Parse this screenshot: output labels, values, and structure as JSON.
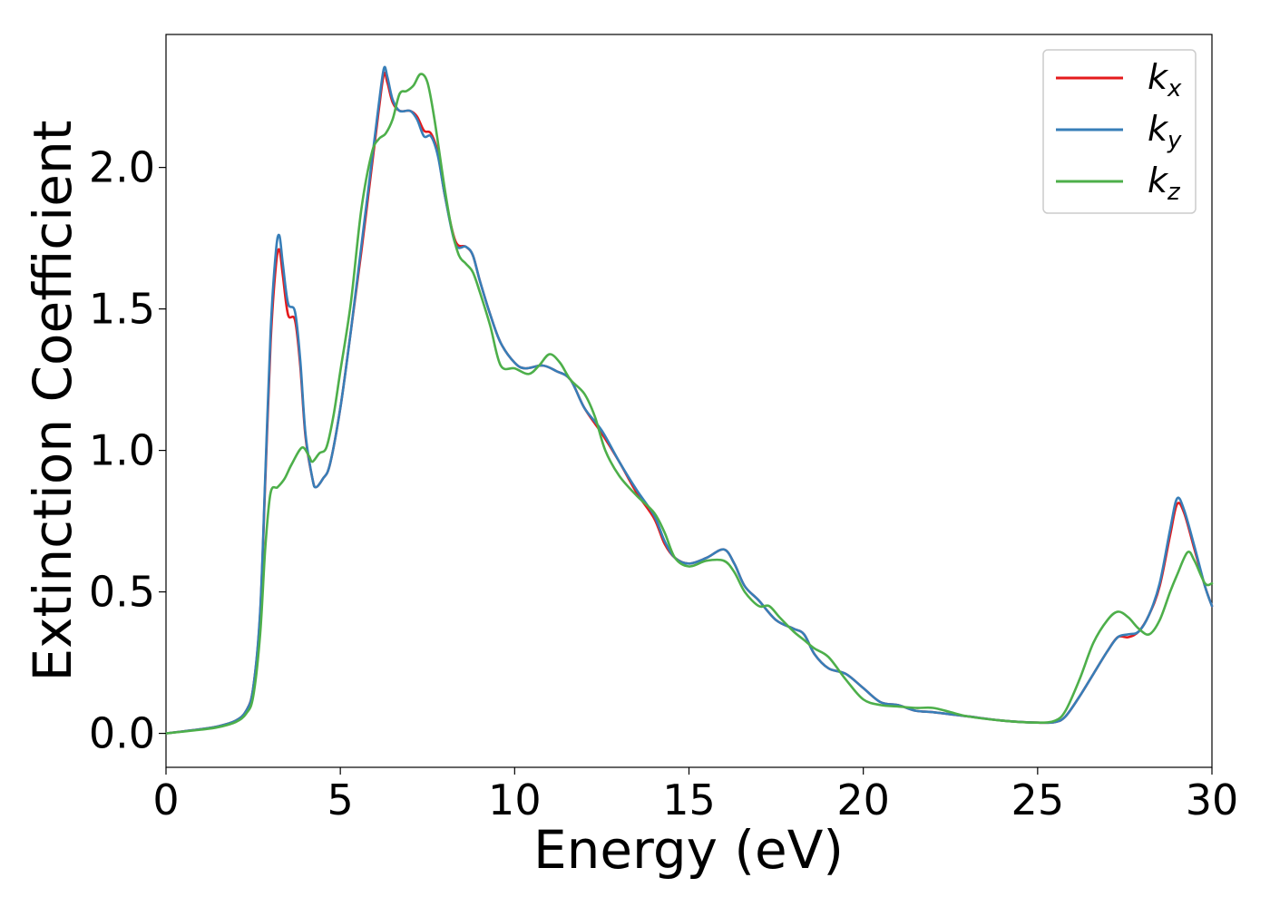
{
  "chart_data": {
    "type": "line",
    "title": "",
    "xlabel": "Energy (eV)",
    "ylabel": "Extinction Coefficient",
    "xlim": [
      0,
      30
    ],
    "ylim": [
      -0.12,
      2.47
    ],
    "xticks": [
      0,
      5,
      10,
      15,
      20,
      25,
      30
    ],
    "xtick_labels": [
      "0",
      "5",
      "10",
      "15",
      "20",
      "25",
      "30"
    ],
    "yticks": [
      0.0,
      0.5,
      1.0,
      1.5,
      2.0
    ],
    "ytick_labels": [
      "0.0",
      "0.5",
      "1.0",
      "1.5",
      "2.0"
    ],
    "grid": false,
    "legend_position": "top-right",
    "series": [
      {
        "name": "k",
        "sub": "x",
        "color": "#e41a1c",
        "points": [
          [
            0,
            0
          ],
          [
            1,
            0.015
          ],
          [
            1.5,
            0.025
          ],
          [
            2,
            0.045
          ],
          [
            2.3,
            0.08
          ],
          [
            2.5,
            0.16
          ],
          [
            2.7,
            0.42
          ],
          [
            2.85,
            0.9
          ],
          [
            3.0,
            1.38
          ],
          [
            3.15,
            1.65
          ],
          [
            3.25,
            1.71
          ],
          [
            3.35,
            1.62
          ],
          [
            3.5,
            1.48
          ],
          [
            3.7,
            1.46
          ],
          [
            3.85,
            1.3
          ],
          [
            4.0,
            1.05
          ],
          [
            4.2,
            0.9
          ],
          [
            4.3,
            0.87
          ],
          [
            4.5,
            0.9
          ],
          [
            4.7,
            0.95
          ],
          [
            5.0,
            1.15
          ],
          [
            5.3,
            1.42
          ],
          [
            5.6,
            1.7
          ],
          [
            5.9,
            2.0
          ],
          [
            6.1,
            2.2
          ],
          [
            6.25,
            2.33
          ],
          [
            6.35,
            2.3
          ],
          [
            6.5,
            2.23
          ],
          [
            6.7,
            2.2
          ],
          [
            7.0,
            2.2
          ],
          [
            7.2,
            2.18
          ],
          [
            7.4,
            2.13
          ],
          [
            7.6,
            2.12
          ],
          [
            7.8,
            2.05
          ],
          [
            8.0,
            1.9
          ],
          [
            8.3,
            1.74
          ],
          [
            8.6,
            1.72
          ],
          [
            8.8,
            1.69
          ],
          [
            9.0,
            1.6
          ],
          [
            9.3,
            1.48
          ],
          [
            9.6,
            1.38
          ],
          [
            10.0,
            1.31
          ],
          [
            10.3,
            1.29
          ],
          [
            10.8,
            1.3
          ],
          [
            11.2,
            1.28
          ],
          [
            11.6,
            1.25
          ],
          [
            12.0,
            1.15
          ],
          [
            12.5,
            1.06
          ],
          [
            13.0,
            0.96
          ],
          [
            13.5,
            0.85
          ],
          [
            14.0,
            0.76
          ],
          [
            14.3,
            0.67
          ],
          [
            14.6,
            0.62
          ],
          [
            15.0,
            0.6
          ],
          [
            15.5,
            0.62
          ],
          [
            16.0,
            0.65
          ],
          [
            16.3,
            0.6
          ],
          [
            16.6,
            0.52
          ],
          [
            17.0,
            0.47
          ],
          [
            17.5,
            0.4
          ],
          [
            18.0,
            0.37
          ],
          [
            18.3,
            0.35
          ],
          [
            18.6,
            0.28
          ],
          [
            19.0,
            0.23
          ],
          [
            19.5,
            0.21
          ],
          [
            20.0,
            0.16
          ],
          [
            20.5,
            0.11
          ],
          [
            21.0,
            0.1
          ],
          [
            21.5,
            0.08
          ],
          [
            22.0,
            0.075
          ],
          [
            23.0,
            0.06
          ],
          [
            24.0,
            0.045
          ],
          [
            25.0,
            0.038
          ],
          [
            25.5,
            0.04
          ],
          [
            25.8,
            0.06
          ],
          [
            26.2,
            0.13
          ],
          [
            26.6,
            0.21
          ],
          [
            27.0,
            0.29
          ],
          [
            27.3,
            0.34
          ],
          [
            27.6,
            0.34
          ],
          [
            27.9,
            0.36
          ],
          [
            28.2,
            0.42
          ],
          [
            28.5,
            0.52
          ],
          [
            28.8,
            0.7
          ],
          [
            29.0,
            0.81
          ],
          [
            29.2,
            0.78
          ],
          [
            29.5,
            0.65
          ],
          [
            29.8,
            0.52
          ],
          [
            30.0,
            0.45
          ]
        ]
      },
      {
        "name": "k",
        "sub": "y",
        "color": "#377eb8",
        "points": [
          [
            0,
            0
          ],
          [
            1,
            0.015
          ],
          [
            1.5,
            0.025
          ],
          [
            2,
            0.045
          ],
          [
            2.3,
            0.08
          ],
          [
            2.5,
            0.16
          ],
          [
            2.7,
            0.43
          ],
          [
            2.85,
            0.92
          ],
          [
            3.0,
            1.42
          ],
          [
            3.15,
            1.7
          ],
          [
            3.25,
            1.76
          ],
          [
            3.35,
            1.66
          ],
          [
            3.5,
            1.52
          ],
          [
            3.7,
            1.49
          ],
          [
            3.85,
            1.32
          ],
          [
            4.0,
            1.06
          ],
          [
            4.2,
            0.9
          ],
          [
            4.3,
            0.87
          ],
          [
            4.5,
            0.9
          ],
          [
            4.7,
            0.95
          ],
          [
            5.0,
            1.15
          ],
          [
            5.3,
            1.42
          ],
          [
            5.6,
            1.72
          ],
          [
            5.9,
            2.02
          ],
          [
            6.1,
            2.22
          ],
          [
            6.25,
            2.35
          ],
          [
            6.35,
            2.32
          ],
          [
            6.5,
            2.24
          ],
          [
            6.7,
            2.2
          ],
          [
            7.0,
            2.2
          ],
          [
            7.2,
            2.17
          ],
          [
            7.4,
            2.11
          ],
          [
            7.6,
            2.11
          ],
          [
            7.8,
            2.04
          ],
          [
            8.0,
            1.9
          ],
          [
            8.3,
            1.73
          ],
          [
            8.6,
            1.72
          ],
          [
            8.8,
            1.69
          ],
          [
            9.0,
            1.6
          ],
          [
            9.3,
            1.48
          ],
          [
            9.6,
            1.38
          ],
          [
            10.0,
            1.31
          ],
          [
            10.3,
            1.29
          ],
          [
            10.8,
            1.3
          ],
          [
            11.2,
            1.28
          ],
          [
            11.6,
            1.25
          ],
          [
            12.0,
            1.15
          ],
          [
            12.5,
            1.07
          ],
          [
            13.0,
            0.96
          ],
          [
            13.5,
            0.86
          ],
          [
            14.0,
            0.77
          ],
          [
            14.3,
            0.68
          ],
          [
            14.6,
            0.62
          ],
          [
            15.0,
            0.6
          ],
          [
            15.5,
            0.62
          ],
          [
            16.0,
            0.65
          ],
          [
            16.3,
            0.6
          ],
          [
            16.6,
            0.52
          ],
          [
            17.0,
            0.47
          ],
          [
            17.5,
            0.4
          ],
          [
            18.0,
            0.37
          ],
          [
            18.3,
            0.35
          ],
          [
            18.6,
            0.28
          ],
          [
            19.0,
            0.23
          ],
          [
            19.5,
            0.21
          ],
          [
            20.0,
            0.16
          ],
          [
            20.5,
            0.11
          ],
          [
            21.0,
            0.1
          ],
          [
            21.5,
            0.08
          ],
          [
            22.0,
            0.075
          ],
          [
            23.0,
            0.06
          ],
          [
            24.0,
            0.045
          ],
          [
            25.0,
            0.038
          ],
          [
            25.5,
            0.04
          ],
          [
            25.8,
            0.06
          ],
          [
            26.2,
            0.13
          ],
          [
            26.6,
            0.21
          ],
          [
            27.0,
            0.29
          ],
          [
            27.3,
            0.34
          ],
          [
            27.6,
            0.35
          ],
          [
            27.9,
            0.36
          ],
          [
            28.2,
            0.42
          ],
          [
            28.5,
            0.53
          ],
          [
            28.8,
            0.72
          ],
          [
            29.0,
            0.83
          ],
          [
            29.2,
            0.79
          ],
          [
            29.5,
            0.66
          ],
          [
            29.8,
            0.52
          ],
          [
            30.0,
            0.45
          ]
        ]
      },
      {
        "name": "k",
        "sub": "z",
        "color": "#4daf4a",
        "points": [
          [
            0,
            0
          ],
          [
            1,
            0.013
          ],
          [
            1.5,
            0.022
          ],
          [
            2,
            0.04
          ],
          [
            2.3,
            0.07
          ],
          [
            2.5,
            0.13
          ],
          [
            2.7,
            0.35
          ],
          [
            2.85,
            0.66
          ],
          [
            3.0,
            0.85
          ],
          [
            3.2,
            0.87
          ],
          [
            3.4,
            0.9
          ],
          [
            3.6,
            0.95
          ],
          [
            3.9,
            1.01
          ],
          [
            4.1,
            0.98
          ],
          [
            4.2,
            0.96
          ],
          [
            4.4,
            0.99
          ],
          [
            4.6,
            1.01
          ],
          [
            4.8,
            1.12
          ],
          [
            5.0,
            1.28
          ],
          [
            5.3,
            1.52
          ],
          [
            5.6,
            1.85
          ],
          [
            5.9,
            2.05
          ],
          [
            6.1,
            2.1
          ],
          [
            6.3,
            2.12
          ],
          [
            6.5,
            2.17
          ],
          [
            6.7,
            2.26
          ],
          [
            6.9,
            2.27
          ],
          [
            7.1,
            2.29
          ],
          [
            7.3,
            2.33
          ],
          [
            7.5,
            2.3
          ],
          [
            7.7,
            2.17
          ],
          [
            8.0,
            1.92
          ],
          [
            8.2,
            1.78
          ],
          [
            8.4,
            1.69
          ],
          [
            8.6,
            1.66
          ],
          [
            8.8,
            1.63
          ],
          [
            9.0,
            1.56
          ],
          [
            9.3,
            1.44
          ],
          [
            9.6,
            1.3
          ],
          [
            10.0,
            1.29
          ],
          [
            10.4,
            1.27
          ],
          [
            10.7,
            1.3
          ],
          [
            11.0,
            1.34
          ],
          [
            11.3,
            1.31
          ],
          [
            11.6,
            1.25
          ],
          [
            12.0,
            1.2
          ],
          [
            12.3,
            1.12
          ],
          [
            12.6,
            1.0
          ],
          [
            13.0,
            0.91
          ],
          [
            13.5,
            0.84
          ],
          [
            14.0,
            0.78
          ],
          [
            14.3,
            0.71
          ],
          [
            14.6,
            0.62
          ],
          [
            15.0,
            0.59
          ],
          [
            15.5,
            0.61
          ],
          [
            16.0,
            0.61
          ],
          [
            16.3,
            0.57
          ],
          [
            16.6,
            0.5
          ],
          [
            17.0,
            0.45
          ],
          [
            17.3,
            0.45
          ],
          [
            17.6,
            0.41
          ],
          [
            18.0,
            0.36
          ],
          [
            18.3,
            0.33
          ],
          [
            18.6,
            0.3
          ],
          [
            19.0,
            0.27
          ],
          [
            19.5,
            0.19
          ],
          [
            20.0,
            0.12
          ],
          [
            20.5,
            0.1
          ],
          [
            21.0,
            0.095
          ],
          [
            21.5,
            0.09
          ],
          [
            22.0,
            0.09
          ],
          [
            22.5,
            0.075
          ],
          [
            23.0,
            0.06
          ],
          [
            24.0,
            0.045
          ],
          [
            25.0,
            0.038
          ],
          [
            25.5,
            0.045
          ],
          [
            25.8,
            0.08
          ],
          [
            26.2,
            0.19
          ],
          [
            26.6,
            0.32
          ],
          [
            27.0,
            0.4
          ],
          [
            27.3,
            0.43
          ],
          [
            27.6,
            0.41
          ],
          [
            27.9,
            0.37
          ],
          [
            28.2,
            0.35
          ],
          [
            28.5,
            0.4
          ],
          [
            28.8,
            0.5
          ],
          [
            29.0,
            0.56
          ],
          [
            29.3,
            0.64
          ],
          [
            29.5,
            0.61
          ],
          [
            29.8,
            0.53
          ],
          [
            30.0,
            0.53
          ]
        ]
      }
    ]
  }
}
